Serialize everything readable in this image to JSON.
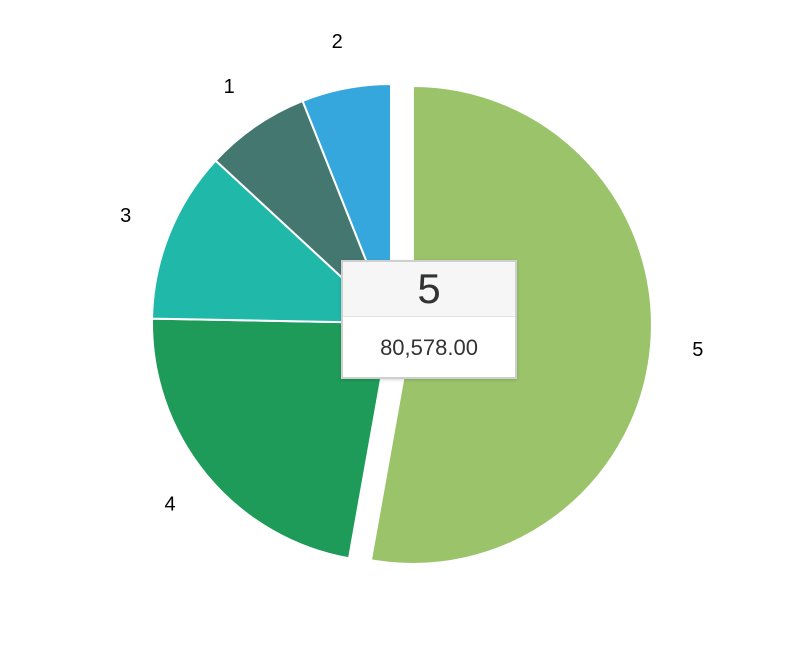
{
  "chart_data": {
    "type": "pie",
    "categories": [
      "1",
      "2",
      "3",
      "4",
      "5"
    ],
    "values": [
      10800,
      9200,
      17700,
      34300,
      80578
    ],
    "colors": [
      "#43776f",
      "#36a7dd",
      "#1fb8a9",
      "#1e9b58",
      "#9ac36a"
    ],
    "exploded": "5",
    "legend": "none"
  },
  "tooltip": {
    "category": "5",
    "value": "80,578.00"
  }
}
